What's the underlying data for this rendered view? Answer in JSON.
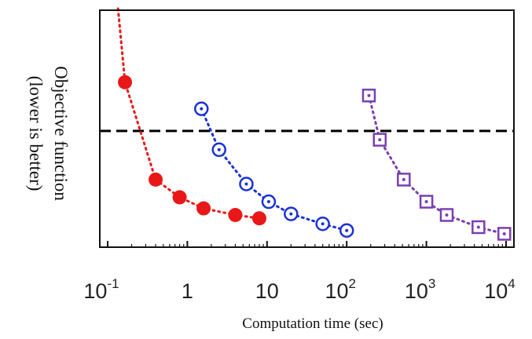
{
  "chart_data": {
    "type": "scatter",
    "title": "",
    "xlabel": "Computation time (sec)",
    "ylabel_line1": "Objective function",
    "ylabel_line2": "(lower is better)",
    "xscale": "log",
    "xlim": [
      0.1,
      10000
    ],
    "ylim": [
      0,
      100
    ],
    "grid": false,
    "legend": "none",
    "x_ticks": [
      {
        "value": 0.1,
        "base": "10",
        "exp": "-1"
      },
      {
        "value": 1,
        "base": "1",
        "exp": ""
      },
      {
        "value": 10,
        "base": "10",
        "exp": ""
      },
      {
        "value": 100,
        "base": "10",
        "exp": "2"
      },
      {
        "value": 1000,
        "base": "10",
        "exp": "3"
      },
      {
        "value": 10000,
        "base": "10",
        "exp": "4"
      }
    ],
    "threshold_line": {
      "y": 49,
      "style": "dashed",
      "color": "#000000"
    },
    "series": [
      {
        "marker": "filled-circle",
        "color": "#e81818",
        "points": [
          [
            0.165,
            71
          ],
          [
            0.4,
            27
          ],
          [
            0.8,
            19
          ],
          [
            1.6,
            14
          ],
          [
            4.0,
            11
          ],
          [
            8.0,
            9.5
          ]
        ],
        "lead_in": [
          0.135,
          100
        ]
      },
      {
        "marker": "open-circle-dot",
        "color": "#1a32d6",
        "points": [
          [
            1.5,
            59
          ],
          [
            2.5,
            40.5
          ],
          [
            5.5,
            25
          ],
          [
            10.5,
            17
          ],
          [
            20,
            11.5
          ],
          [
            50,
            7
          ],
          [
            100,
            4
          ]
        ]
      },
      {
        "marker": "open-square-dot",
        "color": "#7a3fb0",
        "points": [
          [
            190,
            65
          ],
          [
            260,
            45
          ],
          [
            520,
            27
          ],
          [
            1000,
            17
          ],
          [
            1800,
            11
          ],
          [
            4500,
            5.5
          ],
          [
            9500,
            2.5
          ]
        ]
      }
    ]
  }
}
